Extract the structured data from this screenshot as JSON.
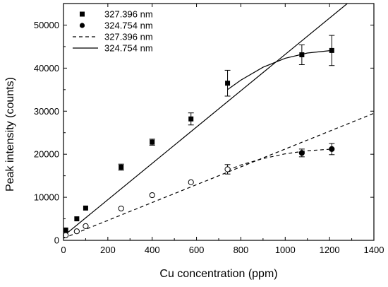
{
  "chart_data": {
    "type": "scatter",
    "xlabel": "Cu concentration (ppm)",
    "ylabel": "Peak intensity (counts)",
    "xlim": [
      0,
      1400
    ],
    "ylim": [
      0,
      55000
    ],
    "xticks": [
      0,
      200,
      400,
      600,
      800,
      1000,
      1200,
      1400
    ],
    "yticks": [
      0,
      10000,
      20000,
      30000,
      40000,
      50000
    ],
    "grid": false,
    "legend_position": "top-left",
    "series": [
      {
        "name": "327.396 nm",
        "kind": "points",
        "marker": "square",
        "points": [
          {
            "x": 10,
            "y": 2400,
            "err": 0
          },
          {
            "x": 60,
            "y": 5000,
            "err": 0
          },
          {
            "x": 100,
            "y": 7500,
            "err": 0
          },
          {
            "x": 260,
            "y": 17000,
            "err": 700
          },
          {
            "x": 400,
            "y": 22800,
            "err": 700
          },
          {
            "x": 575,
            "y": 28200,
            "err": 1400
          },
          {
            "x": 740,
            "y": 36500,
            "err": 3000
          },
          {
            "x": 1075,
            "y": 43100,
            "err": 2300
          },
          {
            "x": 1210,
            "y": 44100,
            "err": 3500
          }
        ]
      },
      {
        "name": "324.754 nm",
        "kind": "points",
        "marker": "circle",
        "points": [
          {
            "x": 10,
            "y": 1200,
            "err": 0,
            "open": true
          },
          {
            "x": 60,
            "y": 2100,
            "err": 0,
            "open": true
          },
          {
            "x": 100,
            "y": 3300,
            "err": 0,
            "open": true
          },
          {
            "x": 260,
            "y": 7400,
            "err": 0,
            "open": true
          },
          {
            "x": 400,
            "y": 10500,
            "err": 0,
            "open": true
          },
          {
            "x": 575,
            "y": 13500,
            "err": 0,
            "open": true
          },
          {
            "x": 740,
            "y": 16500,
            "err": 1100,
            "open": true
          },
          {
            "x": 1075,
            "y": 20300,
            "err": 900,
            "open": false
          },
          {
            "x": 1210,
            "y": 21200,
            "err": 1300,
            "open": false
          }
        ]
      },
      {
        "name": "327.396 nm",
        "kind": "fit",
        "dash": "dashed",
        "points": [
          [
            0,
            500
          ],
          [
            1400,
            29500
          ]
        ]
      },
      {
        "name": "324.754 nm",
        "kind": "fit",
        "dash": "solid",
        "points": [
          [
            0,
            1000
          ],
          [
            1280,
            55000
          ]
        ]
      },
      {
        "name": "",
        "kind": "curve",
        "dash": "solid",
        "points": [
          [
            740,
            35000
          ],
          [
            800,
            37200
          ],
          [
            900,
            40200
          ],
          [
            1000,
            42300
          ],
          [
            1100,
            43500
          ],
          [
            1210,
            44100
          ]
        ]
      },
      {
        "name": "",
        "kind": "curve",
        "dash": "dashed",
        "points": [
          [
            740,
            16300
          ],
          [
            800,
            17500
          ],
          [
            900,
            19000
          ],
          [
            1000,
            20100
          ],
          [
            1100,
            20800
          ],
          [
            1210,
            21200
          ]
        ]
      }
    ]
  }
}
